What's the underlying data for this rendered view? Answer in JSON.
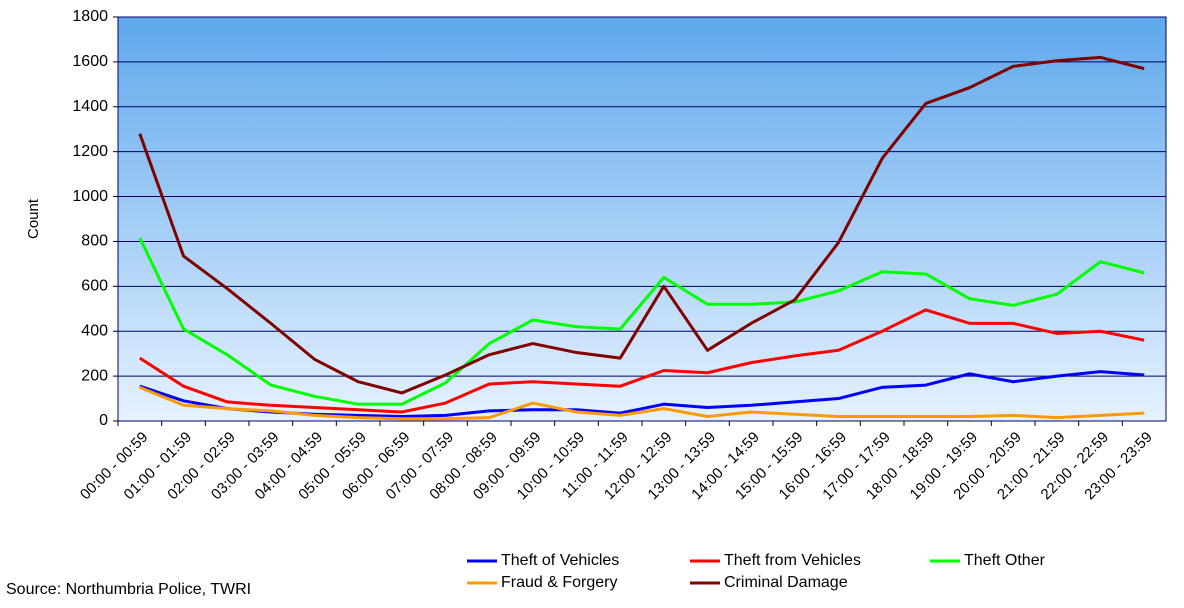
{
  "chart_data": {
    "type": "line",
    "y_label": "Count",
    "source": "Source: Northumbria Police, TWRI",
    "categories": [
      "00:00 - 00:59",
      "01:00 - 01:59",
      "02:00 - 02:59",
      "03:00 - 03:59",
      "04:00 - 04:59",
      "05:00 - 05:59",
      "06:00 - 06:59",
      "07:00 - 07:59",
      "08:00 - 08:59",
      "09:00 - 09:59",
      "10:00 - 10:59",
      "11:00 - 11:59",
      "12:00 - 12:59",
      "13:00 - 13:59",
      "14:00 - 14:59",
      "15:00 - 15:59",
      "16:00 - 16:59",
      "17:00 - 17:59",
      "18:00 - 18:59",
      "19:00 - 19:59",
      "20:00 - 20:59",
      "21:00 - 21:59",
      "22:00 - 22:59",
      "23:00 - 23:59"
    ],
    "series": [
      {
        "name": "Theft of Vehicles",
        "color": "#0000ff",
        "values": [
          155,
          90,
          55,
          40,
          30,
          25,
          20,
          25,
          45,
          50,
          50,
          35,
          75,
          60,
          70,
          85,
          100,
          150,
          160,
          210,
          175,
          200,
          220,
          205
        ]
      },
      {
        "name": "Theft from Vehicles",
        "color": "#ff0000",
        "values": [
          280,
          155,
          85,
          70,
          60,
          50,
          40,
          80,
          165,
          175,
          165,
          155,
          225,
          215,
          260,
          290,
          315,
          400,
          495,
          435,
          435,
          390,
          400,
          360
        ]
      },
      {
        "name": "Theft Other",
        "color": "#00ff00",
        "values": [
          815,
          410,
          295,
          160,
          110,
          75,
          75,
          170,
          345,
          450,
          420,
          410,
          640,
          520,
          520,
          530,
          580,
          665,
          655,
          545,
          515,
          565,
          710,
          660
        ]
      },
      {
        "name": "Fraud & Forgery",
        "color": "#ff9900",
        "values": [
          150,
          70,
          55,
          45,
          25,
          15,
          10,
          10,
          15,
          80,
          40,
          25,
          55,
          20,
          40,
          30,
          20,
          20,
          20,
          20,
          25,
          15,
          25,
          35
        ]
      },
      {
        "name": "Criminal Damage",
        "color": "#800000",
        "values": [
          1280,
          735,
          590,
          435,
          275,
          175,
          125,
          205,
          295,
          345,
          305,
          280,
          600,
          315,
          435,
          540,
          795,
          1170,
          1415,
          1485,
          1580,
          1605,
          1620,
          1570
        ]
      }
    ],
    "ylim": [
      0,
      1800
    ],
    "yticks": [
      0,
      200,
      400,
      600,
      800,
      1000,
      1200,
      1400,
      1600,
      1800
    ],
    "grid": true,
    "legend": "bottom"
  }
}
